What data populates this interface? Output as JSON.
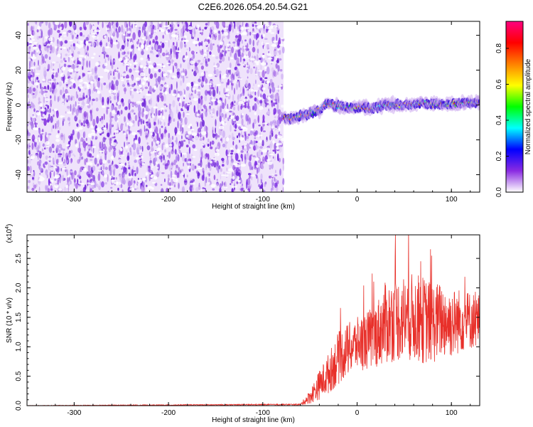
{
  "figure_title": "C2E6.2026.054.20.54.G21",
  "chart_data": [
    {
      "type": "heatmap",
      "title": "C2E6.2026.054.20.54.G21",
      "xlabel": "Height of straight line (km)",
      "ylabel": "Frequency (Hz)",
      "xlim": [
        -350,
        130
      ],
      "ylim": [
        -50,
        48
      ],
      "x_ticks": [
        -300,
        -200,
        -100,
        0,
        100
      ],
      "x_tick_labels": [
        "-300",
        "-200",
        "-100",
        "0",
        "100"
      ],
      "y_ticks": [
        -40,
        -20,
        0,
        20,
        40
      ],
      "y_tick_labels": [
        "-40",
        "-20",
        "0",
        "20",
        "40"
      ],
      "noise_region_x": [
        -350,
        -78
      ],
      "signal_track": {
        "x": [
          -78,
          -70,
          -60,
          -50,
          -40,
          -33,
          -25,
          -15,
          -5,
          5,
          15,
          30,
          50,
          70,
          90,
          110,
          130
        ],
        "frequency": [
          -7,
          -8,
          -6,
          -5,
          -3,
          1,
          0,
          -1,
          -2,
          -1,
          -2,
          0,
          0,
          1,
          0,
          1,
          2
        ]
      },
      "colorbar": {
        "label": "Normalized spectral amplitude",
        "range": [
          0,
          0.95
        ],
        "ticks": [
          0.0,
          0.2,
          0.4,
          0.6,
          0.8
        ],
        "tick_labels": [
          "0.0",
          "0.2",
          "0.4",
          "0.6",
          "0.8"
        ],
        "colors": [
          "#ffffff",
          "#8a2be2",
          "#0000ff",
          "#00ffff",
          "#00ff00",
          "#ffff00",
          "#ff8000",
          "#ff0000",
          "#ff0080"
        ]
      }
    },
    {
      "type": "line",
      "xlabel": "Height of straight line (km)",
      "ylabel": "SNR (10 * v/v)",
      "y_scale_label": "(x10",
      "y_scale_exponent": "4",
      "xlim": [
        -350,
        130
      ],
      "ylim": [
        0,
        2.9
      ],
      "x_ticks": [
        -300,
        -200,
        -100,
        0,
        100
      ],
      "x_tick_labels": [
        "-300",
        "-200",
        "-100",
        "0",
        "100"
      ],
      "y_ticks": [
        0.0,
        0.5,
        1.0,
        1.5,
        2.0,
        2.5
      ],
      "y_tick_labels": [
        "0.0",
        "0.5",
        "1.0",
        "1.5",
        "2.0",
        "2.5"
      ],
      "series": [
        {
          "name": "SNR",
          "color": "#e8302a",
          "envelope": {
            "x": [
              -350,
              -60,
              -50,
              -40,
              -30,
              -20,
              -10,
              0,
              10,
              20,
              30,
              40,
              50,
              60,
              70,
              80,
              90,
              100,
              110,
              120,
              130
            ],
            "mean": [
              0.0,
              0.02,
              0.15,
              0.35,
              0.55,
              0.8,
              0.95,
              1.05,
              1.1,
              1.2,
              1.4,
              1.45,
              1.5,
              1.5,
              1.45,
              1.4,
              1.45,
              1.4,
              1.45,
              1.45,
              1.45
            ],
            "spread": [
              0.005,
              0.01,
              0.12,
              0.25,
              0.35,
              0.45,
              0.45,
              0.45,
              0.5,
              0.55,
              0.7,
              0.7,
              0.75,
              0.75,
              0.75,
              0.7,
              0.65,
              0.6,
              0.55,
              0.5,
              0.45
            ]
          }
        }
      ]
    }
  ]
}
